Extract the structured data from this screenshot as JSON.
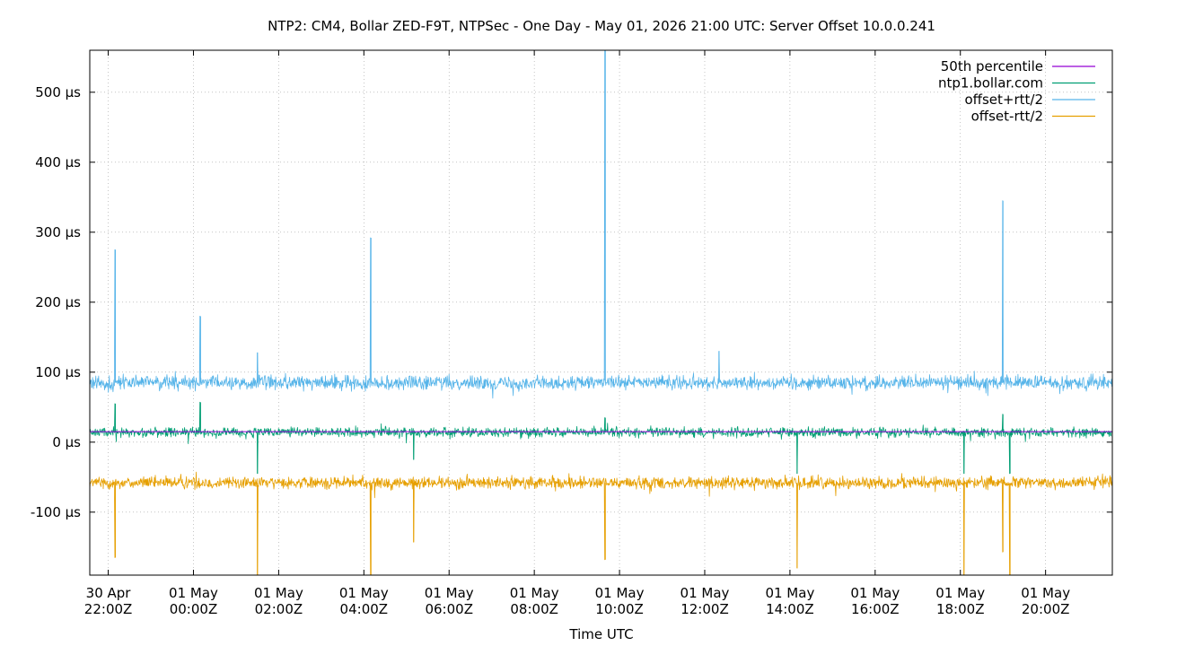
{
  "chart_data": {
    "type": "line",
    "title": "NTP2: CM4, Bollar ZED-F9T, NTPSec - One Day - May 01, 2026 21:00 UTC: Server Offset 10.0.0.241",
    "xlabel": "Time UTC",
    "ylabel": "",
    "x_unit": "UTC time",
    "x_range": [
      "2026-04-30T21:34Z",
      "2026-05-01T21:34Z"
    ],
    "ylim": [
      -190,
      560
    ],
    "y_unit": "µs",
    "grid": true,
    "legend_position": "top-right",
    "y_ticks": [
      {
        "value": 500,
        "label": "500 µs"
      },
      {
        "value": 400,
        "label": "400 µs"
      },
      {
        "value": 300,
        "label": "300 µs"
      },
      {
        "value": 200,
        "label": "200 µs"
      },
      {
        "value": 100,
        "label": "100 µs"
      },
      {
        "value": 0,
        "label": "0 µs"
      },
      {
        "value": -100,
        "label": "-100 µs"
      }
    ],
    "x_ticks": [
      {
        "time": "2026-04-30T22:00Z",
        "line1": "30 Apr",
        "line2": "22:00Z"
      },
      {
        "time": "2026-05-01T00:00Z",
        "line1": "01 May",
        "line2": "00:00Z"
      },
      {
        "time": "2026-05-01T02:00Z",
        "line1": "01 May",
        "line2": "02:00Z"
      },
      {
        "time": "2026-05-01T04:00Z",
        "line1": "01 May",
        "line2": "04:00Z"
      },
      {
        "time": "2026-05-01T06:00Z",
        "line1": "01 May",
        "line2": "06:00Z"
      },
      {
        "time": "2026-05-01T08:00Z",
        "line1": "01 May",
        "line2": "08:00Z"
      },
      {
        "time": "2026-05-01T10:00Z",
        "line1": "01 May",
        "line2": "10:00Z"
      },
      {
        "time": "2026-05-01T12:00Z",
        "line1": "01 May",
        "line2": "12:00Z"
      },
      {
        "time": "2026-05-01T14:00Z",
        "line1": "01 May",
        "line2": "14:00Z"
      },
      {
        "time": "2026-05-01T16:00Z",
        "line1": "01 May",
        "line2": "16:00Z"
      },
      {
        "time": "2026-05-01T18:00Z",
        "line1": "01 May",
        "line2": "18:00Z"
      },
      {
        "time": "2026-05-01T20:00Z",
        "line1": "01 May",
        "line2": "20:00Z"
      }
    ],
    "series": [
      {
        "name": "50th percentile",
        "color": "#9400d3",
        "points": [
          [
            "2026-04-30T21:34Z",
            15
          ],
          [
            "2026-05-01T21:34Z",
            15
          ]
        ]
      },
      {
        "name": "ntp1.bollar.com",
        "color": "#009e73",
        "baseline": 14,
        "noise": 7,
        "spikes": [
          [
            "2026-04-30T22:10Z",
            55
          ],
          [
            "2026-05-01T00:10Z",
            57
          ],
          [
            "2026-05-01T01:30Z",
            -45
          ],
          [
            "2026-05-01T05:10Z",
            -25
          ],
          [
            "2026-05-01T09:40Z",
            35
          ],
          [
            "2026-05-01T14:10Z",
            -45
          ],
          [
            "2026-05-01T18:05Z",
            -45
          ],
          [
            "2026-05-01T19:00Z",
            40
          ],
          [
            "2026-05-01T19:10Z",
            -45
          ]
        ]
      },
      {
        "name": "offset+rtt/2",
        "color": "#56b4e9",
        "baseline": 85,
        "noise": 10,
        "spikes": [
          [
            "2026-04-30T22:10Z",
            275
          ],
          [
            "2026-05-01T00:10Z",
            180
          ],
          [
            "2026-05-01T01:30Z",
            128
          ],
          [
            "2026-05-01T04:10Z",
            292
          ],
          [
            "2026-05-01T09:40Z",
            560
          ],
          [
            "2026-05-01T12:20Z",
            130
          ],
          [
            "2026-05-01T19:00Z",
            345
          ]
        ]
      },
      {
        "name": "offset-rtt/2",
        "color": "#e69f00",
        "baseline": -58,
        "noise": 9,
        "spikes": [
          [
            "2026-04-30T22:10Z",
            -165
          ],
          [
            "2026-05-01T01:30Z",
            -190
          ],
          [
            "2026-05-01T04:10Z",
            -190
          ],
          [
            "2026-05-01T05:10Z",
            -143
          ],
          [
            "2026-05-01T09:40Z",
            -168
          ],
          [
            "2026-05-01T14:10Z",
            -180
          ],
          [
            "2026-05-01T18:05Z",
            -190
          ],
          [
            "2026-05-01T19:00Z",
            -157
          ],
          [
            "2026-05-01T19:10Z",
            -190
          ]
        ]
      }
    ]
  }
}
